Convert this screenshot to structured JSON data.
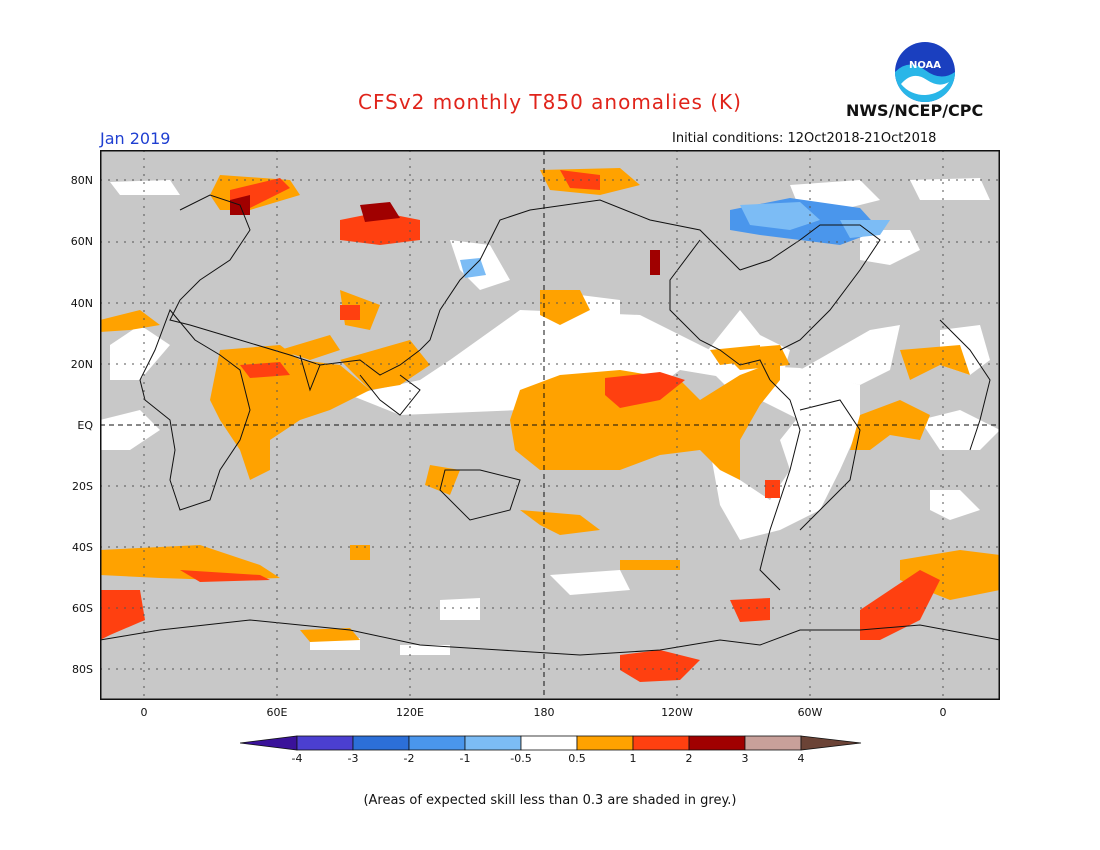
{
  "header": {
    "title": "CFSv2 monthly T850 anomalies (K)",
    "agency": "NWS/NCEP/CPC",
    "logo_text": "NOAA",
    "valid_month": "Jan 2019",
    "initial_conditions": "Initial conditions: 12Oct2018-21Oct2018"
  },
  "map": {
    "lat_labels": [
      "80N",
      "60N",
      "40N",
      "20N",
      "EQ",
      "20S",
      "40S",
      "60S",
      "80S"
    ],
    "lon_labels": [
      "0",
      "60E",
      "120E",
      "180",
      "120W",
      "60W",
      "0"
    ]
  },
  "colorbar": {
    "tick_labels": [
      "-4",
      "-3",
      "-2",
      "-1",
      "-0.5",
      "0.5",
      "1",
      "2",
      "3",
      "4"
    ],
    "colors": [
      "#3a129a",
      "#4b3fd0",
      "#2c6fd8",
      "#4a96ec",
      "#7cbcf5",
      "#ffffff",
      "#ffa200",
      "#ff4010",
      "#a00000",
      "#c8a09a",
      "#6b4336"
    ]
  },
  "footnote": "(Areas of expected skill less than 0.3 are shaded in grey.)",
  "palette": {
    "grey": "#c8c8c8",
    "orange": "#ffa200",
    "red": "#ff4010",
    "darkred": "#a00000",
    "lightblue": "#7cbcf5",
    "blue": "#4a96ec",
    "white": "#ffffff"
  }
}
